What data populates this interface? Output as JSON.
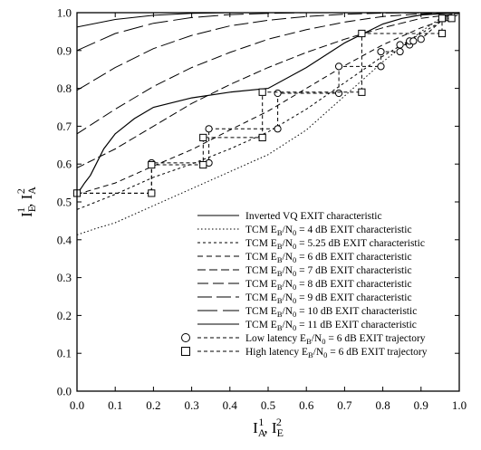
{
  "chart_data": {
    "type": "line",
    "xlabel": "I_A^1, I_E^2",
    "ylabel": "I_E^1, I_A^2",
    "xlim": [
      0,
      1
    ],
    "ylim": [
      0,
      1
    ],
    "xticks": [
      "0.0",
      "0.1",
      "0.2",
      "0.3",
      "0.4",
      "0.5",
      "0.6",
      "0.7",
      "0.8",
      "0.9",
      "1.0"
    ],
    "yticks": [
      "0.0",
      "0.1",
      "0.2",
      "0.3",
      "0.4",
      "0.5",
      "0.6",
      "0.7",
      "0.8",
      "0.9",
      "1.0"
    ],
    "grid": false,
    "legend_position": "bottom-right",
    "series": [
      {
        "name": "Inverted VQ EXIT characteristic",
        "dash": "solid",
        "points": [
          [
            0.523,
            0.0
          ],
          [
            0.535,
            0.01
          ],
          [
            0.55,
            0.02
          ],
          [
            0.57,
            0.035
          ],
          [
            0.6,
            0.05
          ],
          [
            0.64,
            0.07
          ],
          [
            0.68,
            0.1
          ],
          [
            0.72,
            0.15
          ],
          [
            0.75,
            0.2
          ],
          [
            0.775,
            0.3
          ],
          [
            0.79,
            0.4
          ],
          [
            0.8,
            0.5
          ],
          [
            0.855,
            0.6
          ],
          [
            0.92,
            0.7
          ],
          [
            0.97,
            0.8
          ],
          [
            0.985,
            0.85
          ],
          [
            0.994,
            0.9
          ],
          [
            1.0,
            1.0
          ]
        ],
        "axes": "swapped"
      },
      {
        "name": "TCM E_B/N_0 = 4 dB EXIT characteristic",
        "dash": "dotted",
        "points": [
          [
            0.0,
            0.413
          ],
          [
            0.05,
            0.43
          ],
          [
            0.1,
            0.445
          ],
          [
            0.2,
            0.49
          ],
          [
            0.3,
            0.535
          ],
          [
            0.4,
            0.58
          ],
          [
            0.5,
            0.625
          ],
          [
            0.6,
            0.69
          ],
          [
            0.7,
            0.78
          ],
          [
            0.8,
            0.87
          ],
          [
            0.9,
            0.95
          ],
          [
            0.95,
            0.985
          ],
          [
            1.0,
            1.0
          ]
        ]
      },
      {
        "name": "TCM E_B/N_0 = 5.25 dB EXIT characteristic",
        "dash": "short-dash",
        "points": [
          [
            0.0,
            0.48
          ],
          [
            0.1,
            0.52
          ],
          [
            0.2,
            0.565
          ],
          [
            0.3,
            0.6
          ],
          [
            0.4,
            0.64
          ],
          [
            0.5,
            0.685
          ],
          [
            0.6,
            0.745
          ],
          [
            0.7,
            0.815
          ],
          [
            0.8,
            0.885
          ],
          [
            0.9,
            0.945
          ],
          [
            0.95,
            0.975
          ],
          [
            1.0,
            1.0
          ]
        ]
      },
      {
        "name": "TCM E_B/N_0 = 6 dB EXIT characteristic",
        "dash": "medium-dash",
        "points": [
          [
            0.0,
            0.52
          ],
          [
            0.1,
            0.55
          ],
          [
            0.2,
            0.595
          ],
          [
            0.3,
            0.638
          ],
          [
            0.4,
            0.69
          ],
          [
            0.5,
            0.74
          ],
          [
            0.6,
            0.8
          ],
          [
            0.7,
            0.86
          ],
          [
            0.8,
            0.915
          ],
          [
            0.9,
            0.96
          ],
          [
            1.0,
            0.995
          ]
        ]
      },
      {
        "name": "TCM E_B/N_0 = 7 dB EXIT characteristic",
        "dash": "long-dash",
        "points": [
          [
            0.0,
            0.59
          ],
          [
            0.1,
            0.64
          ],
          [
            0.2,
            0.7
          ],
          [
            0.3,
            0.76
          ],
          [
            0.4,
            0.81
          ],
          [
            0.5,
            0.855
          ],
          [
            0.6,
            0.895
          ],
          [
            0.7,
            0.93
          ],
          [
            0.8,
            0.96
          ],
          [
            0.9,
            0.985
          ],
          [
            1.0,
            0.998
          ]
        ]
      },
      {
        "name": "TCM E_B/N_0 = 8 dB EXIT characteristic",
        "dash": "longer-dash",
        "points": [
          [
            0.0,
            0.68
          ],
          [
            0.1,
            0.745
          ],
          [
            0.2,
            0.805
          ],
          [
            0.3,
            0.855
          ],
          [
            0.4,
            0.895
          ],
          [
            0.5,
            0.93
          ],
          [
            0.6,
            0.955
          ],
          [
            0.7,
            0.975
          ],
          [
            0.8,
            0.99
          ],
          [
            0.9,
            0.997
          ],
          [
            1.0,
            1.0
          ]
        ]
      },
      {
        "name": "TCM E_B/N_0 = 9 dB EXIT characteristic",
        "dash": "very-long-dash",
        "points": [
          [
            0.0,
            0.795
          ],
          [
            0.1,
            0.855
          ],
          [
            0.2,
            0.905
          ],
          [
            0.3,
            0.94
          ],
          [
            0.4,
            0.965
          ],
          [
            0.5,
            0.98
          ],
          [
            0.6,
            0.99
          ],
          [
            0.7,
            0.996
          ],
          [
            0.8,
            0.999
          ],
          [
            1.0,
            1.0
          ]
        ]
      },
      {
        "name": "TCM E_B/N_0 = 10 dB EXIT characteristic",
        "dash": "extra-long-dash",
        "points": [
          [
            0.0,
            0.9
          ],
          [
            0.1,
            0.945
          ],
          [
            0.2,
            0.972
          ],
          [
            0.3,
            0.987
          ],
          [
            0.4,
            0.995
          ],
          [
            0.5,
            0.998
          ],
          [
            0.6,
            1.0
          ],
          [
            1.0,
            1.0
          ]
        ]
      },
      {
        "name": "TCM E_B/N_0 = 11 dB EXIT characteristic",
        "dash": "solid-thin",
        "points": [
          [
            0.0,
            0.962
          ],
          [
            0.1,
            0.982
          ],
          [
            0.2,
            0.993
          ],
          [
            0.3,
            0.998
          ],
          [
            0.4,
            1.0
          ],
          [
            1.0,
            1.0
          ]
        ]
      }
    ],
    "trajectories": [
      {
        "name": "Low latency E_B/N_0 = 6 dB EXIT trajectory",
        "marker": "circle",
        "points": [
          [
            0.0,
            0.523
          ],
          [
            0.195,
            0.523
          ],
          [
            0.195,
            0.603
          ],
          [
            0.345,
            0.603
          ],
          [
            0.345,
            0.693
          ],
          [
            0.525,
            0.693
          ],
          [
            0.525,
            0.787
          ],
          [
            0.685,
            0.787
          ],
          [
            0.685,
            0.858
          ],
          [
            0.795,
            0.858
          ],
          [
            0.795,
            0.897
          ],
          [
            0.845,
            0.897
          ],
          [
            0.845,
            0.915
          ],
          [
            0.87,
            0.915
          ],
          [
            0.87,
            0.925
          ],
          [
            0.88,
            0.925
          ],
          [
            0.9,
            0.93
          ],
          [
            0.96,
            0.985
          ],
          [
            0.975,
            0.985
          ]
        ]
      },
      {
        "name": "High latency E_B/N_0 = 6 dB EXIT trajectory",
        "marker": "square",
        "points": [
          [
            0.0,
            0.523
          ],
          [
            0.195,
            0.523
          ],
          [
            0.195,
            0.598
          ],
          [
            0.33,
            0.598
          ],
          [
            0.33,
            0.67
          ],
          [
            0.485,
            0.67
          ],
          [
            0.485,
            0.79
          ],
          [
            0.745,
            0.79
          ],
          [
            0.745,
            0.945
          ],
          [
            0.955,
            0.945
          ],
          [
            0.955,
            0.985
          ],
          [
            0.98,
            0.985
          ]
        ]
      }
    ],
    "legend": [
      {
        "label": "Inverted VQ EXIT characteristic",
        "sub": "",
        "tail": ""
      },
      {
        "label": "TCM E",
        "sub": "B",
        "mid": "/N",
        "sub2": "0",
        "tail": " = 4 dB EXIT characteristic"
      },
      {
        "label": "TCM E",
        "sub": "B",
        "mid": "/N",
        "sub2": "0",
        "tail": " = 5.25 dB EXIT characteristic"
      },
      {
        "label": "TCM E",
        "sub": "B",
        "mid": "/N",
        "sub2": "0",
        "tail": " = 6 dB EXIT characteristic"
      },
      {
        "label": "TCM E",
        "sub": "B",
        "mid": "/N",
        "sub2": "0",
        "tail": " = 7 dB EXIT characteristic"
      },
      {
        "label": "TCM E",
        "sub": "B",
        "mid": "/N",
        "sub2": "0",
        "tail": " = 8 dB EXIT characteristic"
      },
      {
        "label": "TCM E",
        "sub": "B",
        "mid": "/N",
        "sub2": "0",
        "tail": " = 9 dB EXIT characteristic"
      },
      {
        "label": "TCM E",
        "sub": "B",
        "mid": "/N",
        "sub2": "0",
        "tail": " = 10 dB EXIT characteristic"
      },
      {
        "label": "TCM E",
        "sub": "B",
        "mid": "/N",
        "sub2": "0",
        "tail": " = 11 dB EXIT characteristic"
      },
      {
        "label": "Low latency E",
        "sub": "B",
        "mid": "/N",
        "sub2": "0",
        "tail": " = 6 dB EXIT trajectory"
      },
      {
        "label": "High latency E",
        "sub": "B",
        "mid": "/N",
        "sub2": "0",
        "tail": " = 6 dB EXIT trajectory"
      }
    ]
  }
}
